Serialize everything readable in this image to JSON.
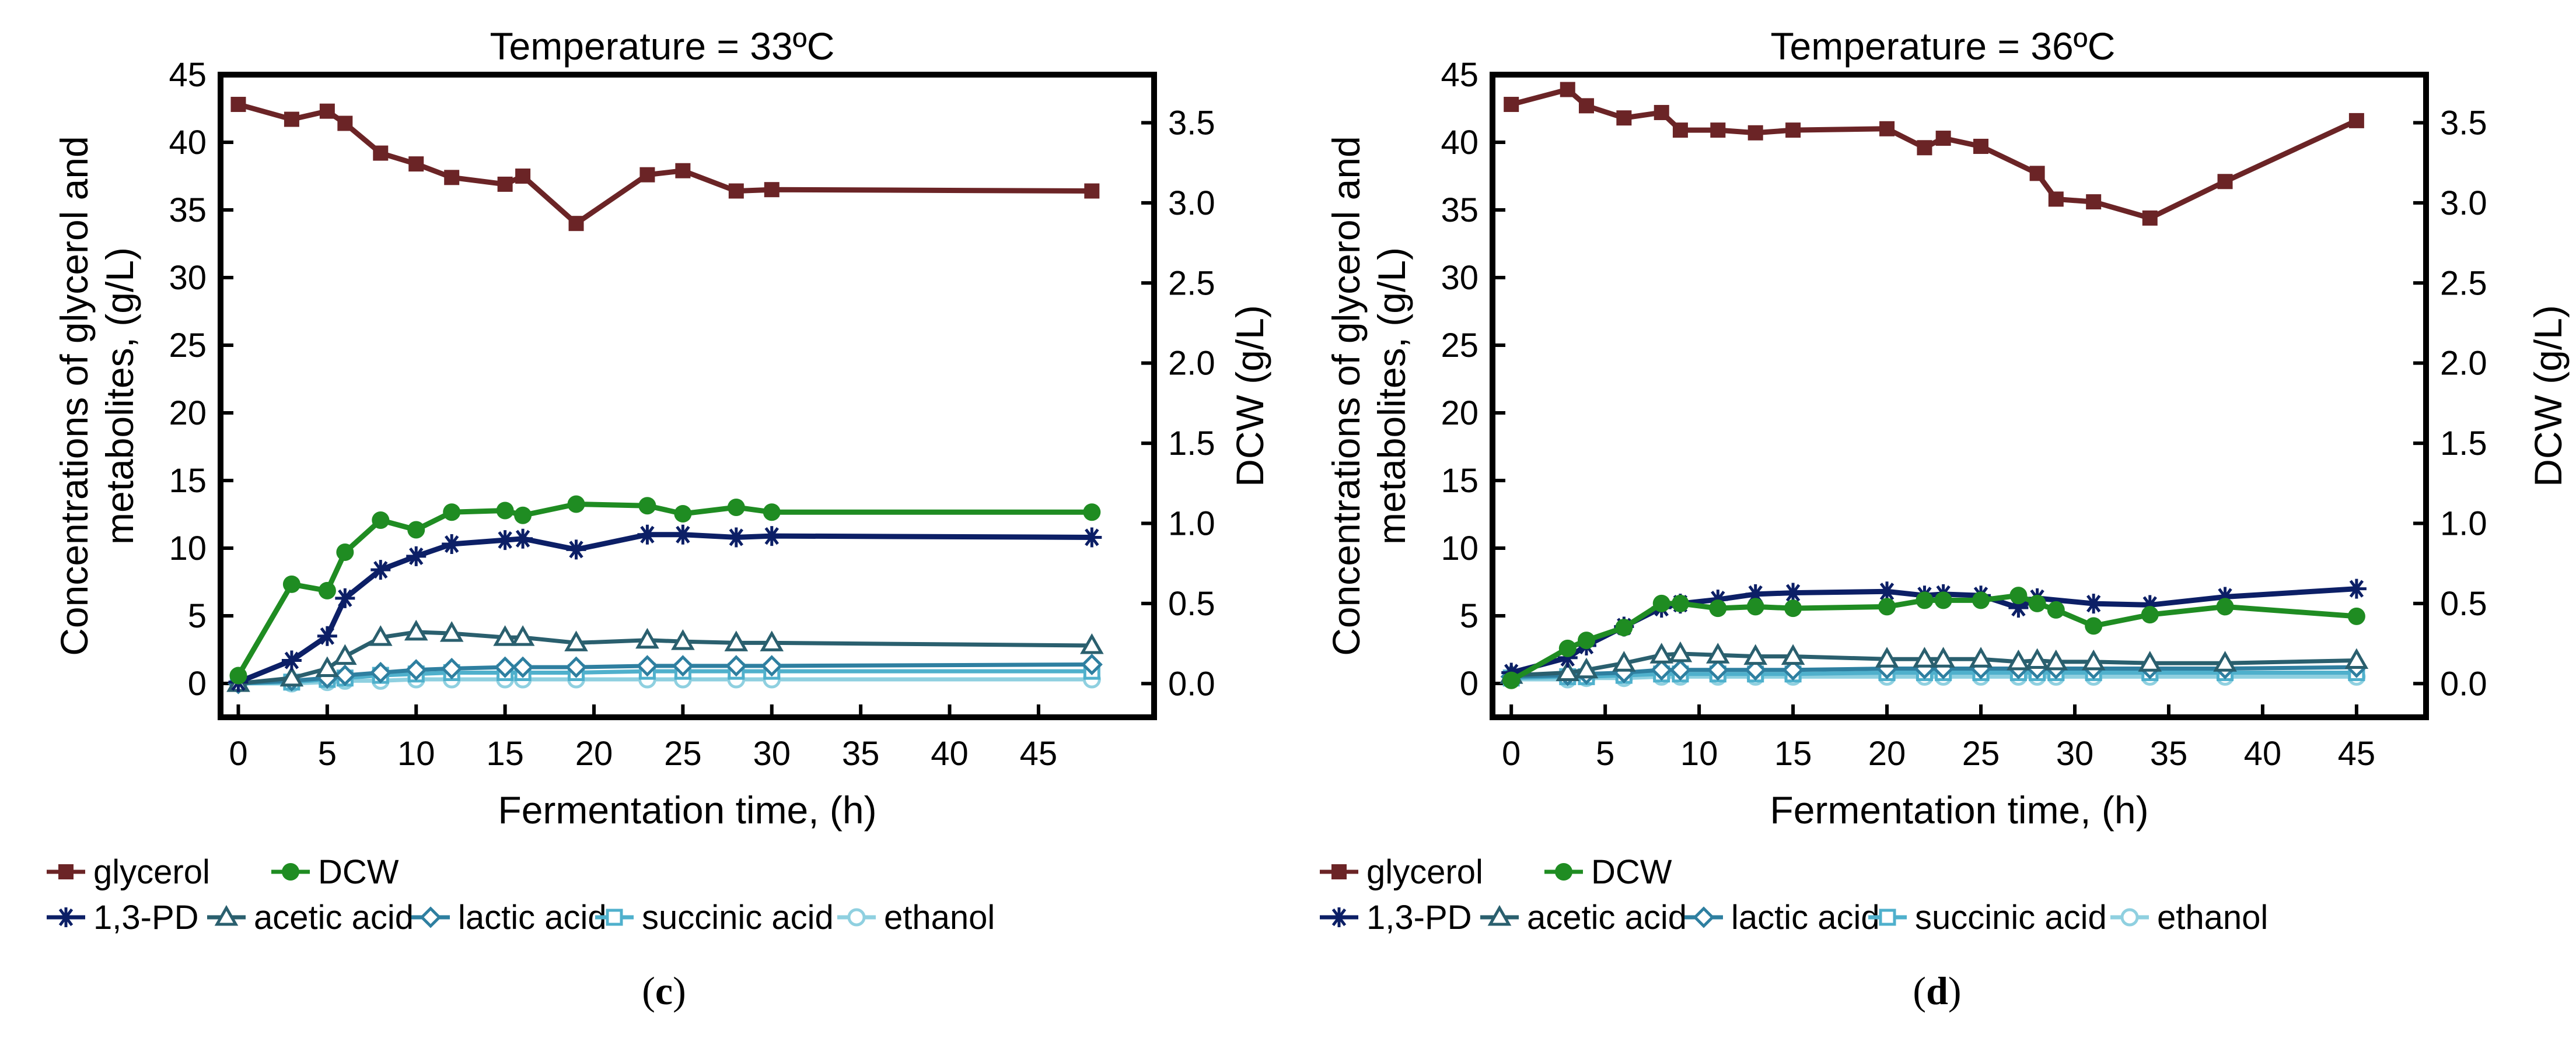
{
  "chart_data": [
    {
      "type": "line",
      "title": "Temperature = 33ºC",
      "panel_label": "c",
      "xlabel": "Fermentation time, (h)",
      "ylabel": "Concentrations of glycerol and metabolites, (g/L)",
      "ylabel_lines": [
        "Concentrations of glycerol and",
        "metabolites, (g/L)"
      ],
      "y2label": "DCW (g/L)",
      "xlim": [
        -1,
        51.5
      ],
      "ylim": [
        -2.5,
        45
      ],
      "y2lim": [
        -0.21,
        3.8
      ],
      "xticks": [
        0,
        5,
        10,
        15,
        20,
        25,
        30,
        35,
        40,
        45
      ],
      "yticks": [
        0,
        5,
        10,
        15,
        20,
        25,
        30,
        35,
        40,
        45
      ],
      "y2ticks": [
        "0.0",
        "0.5",
        "1.0",
        "1.5",
        "2.0",
        "2.5",
        "3.0",
        "3.5"
      ],
      "grid": false,
      "legend_position": "bottom",
      "series": [
        {
          "name": "glycerol",
          "color": "#6b2426",
          "marker": "square",
          "axis": "left",
          "x": [
            0,
            3,
            5,
            6,
            8,
            10,
            12,
            15,
            16,
            19,
            23,
            25,
            28,
            30,
            48
          ],
          "y": [
            42.8,
            41.7,
            42.3,
            41.4,
            39.2,
            38.4,
            37.4,
            36.9,
            37.5,
            34.0,
            37.6,
            37.9,
            36.4,
            36.5,
            36.4
          ]
        },
        {
          "name": "DCW",
          "color": "#1f8c22",
          "marker": "circle",
          "axis": "right",
          "x": [
            0,
            3,
            5,
            6,
            8,
            10,
            12,
            15,
            16,
            19,
            23,
            25,
            28,
            30,
            48
          ],
          "y": [
            0.05,
            0.62,
            0.58,
            0.82,
            1.02,
            0.96,
            1.07,
            1.08,
            1.05,
            1.12,
            1.11,
            1.06,
            1.1,
            1.07,
            1.07
          ]
        },
        {
          "name": "1,3-PD",
          "color": "#0c1f66",
          "marker": "star",
          "axis": "left",
          "x": [
            0,
            3,
            5,
            6,
            8,
            10,
            12,
            15,
            16,
            19,
            23,
            25,
            28,
            30,
            48
          ],
          "y": [
            0.1,
            1.7,
            3.5,
            6.3,
            8.4,
            9.4,
            10.3,
            10.6,
            10.7,
            9.9,
            11.0,
            11.0,
            10.8,
            10.9,
            10.8
          ]
        },
        {
          "name": "acetic acid",
          "color": "#2a5f6e",
          "marker": "triangle",
          "axis": "left",
          "x": [
            0,
            3,
            5,
            6,
            8,
            10,
            12,
            15,
            16,
            19,
            23,
            25,
            28,
            30,
            48
          ],
          "y": [
            0.0,
            0.4,
            1.1,
            2.0,
            3.4,
            3.8,
            3.7,
            3.4,
            3.4,
            3.0,
            3.2,
            3.1,
            3.0,
            3.0,
            2.8
          ]
        },
        {
          "name": "lactic acid",
          "color": "#2e7fa0",
          "marker": "diamond",
          "axis": "left",
          "x": [
            0,
            3,
            5,
            6,
            8,
            10,
            12,
            15,
            16,
            19,
            23,
            25,
            28,
            30,
            48
          ],
          "y": [
            0.0,
            0.2,
            0.4,
            0.6,
            0.8,
            1.0,
            1.1,
            1.2,
            1.2,
            1.2,
            1.3,
            1.3,
            1.3,
            1.3,
            1.4
          ]
        },
        {
          "name": "succinic acid",
          "color": "#4fb0cc",
          "marker": "hsquare",
          "axis": "left",
          "x": [
            0,
            3,
            5,
            6,
            8,
            10,
            12,
            15,
            16,
            19,
            23,
            25,
            28,
            30,
            48
          ],
          "y": [
            0.0,
            0.1,
            0.3,
            0.4,
            0.6,
            0.7,
            0.8,
            0.8,
            0.8,
            0.8,
            0.9,
            0.9,
            0.9,
            0.9,
            0.9
          ]
        },
        {
          "name": "ethanol",
          "color": "#8fd0e0",
          "marker": "hcircle",
          "axis": "left",
          "x": [
            0,
            3,
            5,
            6,
            8,
            10,
            12,
            15,
            16,
            19,
            23,
            25,
            28,
            30,
            48
          ],
          "y": [
            0.0,
            0.0,
            0.1,
            0.2,
            0.2,
            0.3,
            0.3,
            0.3,
            0.3,
            0.3,
            0.3,
            0.3,
            0.3,
            0.3,
            0.3
          ]
        }
      ]
    },
    {
      "type": "line",
      "title": "Temperature = 36ºC",
      "panel_label": "d",
      "xlabel": "Fermentation time, (h)",
      "ylabel": "Concentrations of glycerol and metabolites, (g/L)",
      "ylabel_lines": [
        "Concentrations of glycerol and",
        "metabolites, (g/L)"
      ],
      "y2label": "DCW (g/L)",
      "xlim": [
        -1,
        48.7
      ],
      "ylim": [
        -2.5,
        45
      ],
      "y2lim": [
        -0.21,
        3.8
      ],
      "xticks": [
        0,
        5,
        10,
        15,
        20,
        25,
        30,
        35,
        40,
        45
      ],
      "yticks": [
        0,
        5,
        10,
        15,
        20,
        25,
        30,
        35,
        40,
        45
      ],
      "y2ticks": [
        "0.0",
        "0.5",
        "1.0",
        "1.5",
        "2.0",
        "2.5",
        "3.0",
        "3.5"
      ],
      "grid": false,
      "legend_position": "bottom",
      "series": [
        {
          "name": "glycerol",
          "color": "#6b2426",
          "marker": "square",
          "axis": "left",
          "x": [
            0,
            3,
            4,
            6,
            8,
            9,
            11,
            13,
            15,
            20,
            22,
            23,
            25,
            28,
            29,
            31,
            34,
            38,
            45
          ],
          "y": [
            42.8,
            43.9,
            42.7,
            41.8,
            42.2,
            40.9,
            40.9,
            40.7,
            40.9,
            41.0,
            39.6,
            40.3,
            39.7,
            37.7,
            35.8,
            35.6,
            34.4,
            37.1,
            41.6
          ]
        },
        {
          "name": "DCW",
          "color": "#1f8c22",
          "marker": "circle",
          "axis": "right",
          "x": [
            0,
            3,
            4,
            6,
            8,
            9,
            11,
            13,
            15,
            20,
            22,
            23,
            25,
            27,
            28,
            29,
            31,
            34,
            38,
            45
          ],
          "y": [
            0.02,
            0.22,
            0.27,
            0.35,
            0.5,
            0.5,
            0.47,
            0.48,
            0.47,
            0.48,
            0.52,
            0.52,
            0.52,
            0.55,
            0.5,
            0.46,
            0.36,
            0.43,
            0.48,
            0.42
          ]
        },
        {
          "name": "1,3-PD",
          "color": "#0c1f66",
          "marker": "star",
          "axis": "left",
          "x": [
            0,
            3,
            4,
            6,
            8,
            9,
            11,
            13,
            15,
            20,
            22,
            23,
            25,
            27,
            28,
            31,
            34,
            38,
            45
          ],
          "y": [
            0.8,
            1.9,
            2.8,
            4.2,
            5.6,
            5.9,
            6.2,
            6.6,
            6.7,
            6.8,
            6.5,
            6.6,
            6.5,
            5.6,
            6.3,
            5.9,
            5.8,
            6.4,
            7.0
          ]
        },
        {
          "name": "acetic acid",
          "color": "#2a5f6e",
          "marker": "triangle",
          "axis": "left",
          "x": [
            0,
            3,
            4,
            6,
            8,
            9,
            11,
            13,
            15,
            20,
            22,
            23,
            25,
            27,
            28,
            29,
            31,
            34,
            38,
            45
          ],
          "y": [
            0.6,
            0.8,
            1.0,
            1.5,
            2.1,
            2.2,
            2.1,
            2.0,
            2.0,
            1.8,
            1.8,
            1.8,
            1.8,
            1.6,
            1.7,
            1.6,
            1.6,
            1.5,
            1.5,
            1.7
          ]
        },
        {
          "name": "lactic acid",
          "color": "#2e7fa0",
          "marker": "diamond",
          "axis": "left",
          "x": [
            0,
            3,
            4,
            6,
            8,
            9,
            11,
            13,
            15,
            20,
            22,
            23,
            25,
            27,
            28,
            29,
            31,
            34,
            38,
            45
          ],
          "y": [
            0.5,
            0.6,
            0.7,
            0.8,
            1.0,
            1.0,
            1.0,
            1.0,
            1.0,
            1.1,
            1.1,
            1.1,
            1.1,
            1.1,
            1.1,
            1.1,
            1.1,
            1.1,
            1.1,
            1.2
          ]
        },
        {
          "name": "succinic acid",
          "color": "#4fb0cc",
          "marker": "hsquare",
          "axis": "left",
          "x": [
            0,
            3,
            4,
            6,
            8,
            9,
            11,
            13,
            15,
            20,
            22,
            23,
            25,
            27,
            28,
            29,
            31,
            34,
            38,
            45
          ],
          "y": [
            0.4,
            0.5,
            0.5,
            0.6,
            0.7,
            0.7,
            0.7,
            0.7,
            0.7,
            0.8,
            0.8,
            0.8,
            0.8,
            0.8,
            0.8,
            0.8,
            0.8,
            0.8,
            0.8,
            0.8
          ]
        },
        {
          "name": "ethanol",
          "color": "#8fd0e0",
          "marker": "hcircle",
          "axis": "left",
          "x": [
            0,
            3,
            4,
            6,
            8,
            9,
            11,
            13,
            15,
            20,
            22,
            23,
            25,
            27,
            28,
            29,
            31,
            34,
            38,
            45
          ],
          "y": [
            0.3,
            0.3,
            0.4,
            0.4,
            0.5,
            0.5,
            0.5,
            0.5,
            0.5,
            0.5,
            0.5,
            0.5,
            0.5,
            0.5,
            0.5,
            0.5,
            0.5,
            0.5,
            0.5,
            0.5
          ]
        }
      ]
    }
  ]
}
